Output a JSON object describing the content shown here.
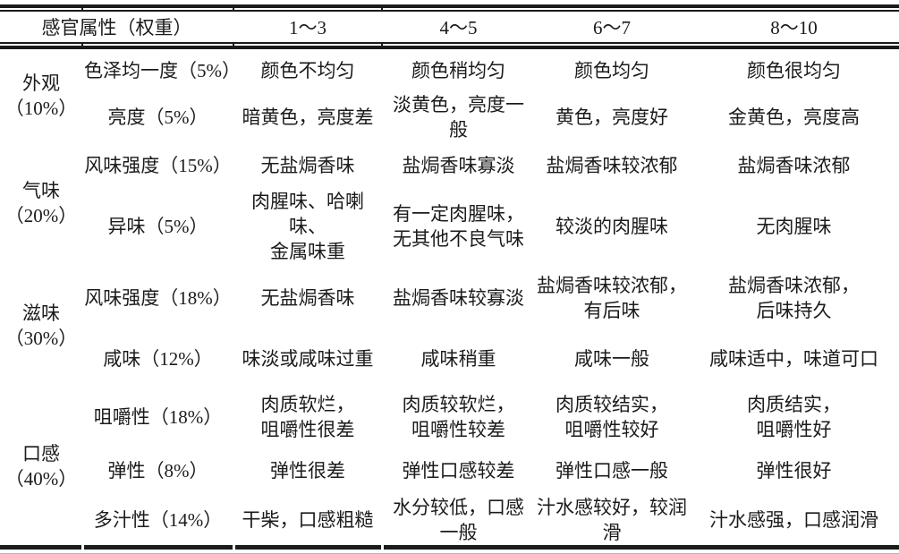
{
  "table": {
    "header": {
      "attribute_col": "感官属性（权重）",
      "score_cols": [
        "1～3",
        "4～5",
        "6～7",
        "8～10"
      ]
    },
    "groups": [
      {
        "name": "外观",
        "weight": "（10%）",
        "rows": [
          {
            "attribute": "色泽均一度（5%）",
            "scores": [
              [
                "颜色不均匀"
              ],
              [
                "颜色稍均匀"
              ],
              [
                "颜色均匀"
              ],
              [
                "颜色很均匀"
              ]
            ]
          },
          {
            "attribute": "亮度（5%）",
            "scores": [
              [
                "暗黄色，亮度差"
              ],
              [
                "淡黄色，亮度一般"
              ],
              [
                "黄色，亮度好"
              ],
              [
                "金黄色，亮度高"
              ]
            ]
          }
        ]
      },
      {
        "name": "气味",
        "weight": "（20%）",
        "rows": [
          {
            "attribute": "风味强度（15%）",
            "scores": [
              [
                "无盐焗香味"
              ],
              [
                "盐焗香味寡淡"
              ],
              [
                "盐焗香味较浓郁"
              ],
              [
                "盐焗香味浓郁"
              ]
            ]
          },
          {
            "attribute": "异味（5%）",
            "scores": [
              [
                "肉腥味、哈喇味、",
                "金属味重"
              ],
              [
                "有一定肉腥味，",
                "无其他不良气味"
              ],
              [
                "较淡的肉腥味"
              ],
              [
                "无肉腥味"
              ]
            ]
          }
        ]
      },
      {
        "name": "滋味",
        "weight": "（30%）",
        "rows": [
          {
            "attribute": "风味强度（18%）",
            "scores": [
              [
                "无盐焗香味"
              ],
              [
                "盐焗香味较寡淡"
              ],
              [
                "盐焗香味较浓郁，",
                "有后味"
              ],
              [
                "盐焗香味浓郁，",
                "后味持久"
              ]
            ]
          },
          {
            "attribute": "咸味（12%）",
            "scores": [
              [
                "味淡或咸味过重"
              ],
              [
                "咸味稍重"
              ],
              [
                "咸味一般"
              ],
              [
                "咸味适中，味道可口"
              ]
            ]
          }
        ]
      },
      {
        "name": "口感",
        "weight": "（40%）",
        "rows": [
          {
            "attribute": "咀嚼性（18%）",
            "scores": [
              [
                "肉质软烂，",
                "咀嚼性很差"
              ],
              [
                "肉质较软烂，",
                "咀嚼性较差"
              ],
              [
                "肉质较结实，",
                "咀嚼性较好"
              ],
              [
                "肉质结实，",
                "咀嚼性好"
              ]
            ]
          },
          {
            "attribute": "弹性（8%）",
            "scores": [
              [
                "弹性很差"
              ],
              [
                "弹性口感较差"
              ],
              [
                "弹性口感一般"
              ],
              [
                "弹性很好"
              ]
            ]
          },
          {
            "attribute": "多汁性（14%）",
            "scores": [
              [
                "干柴，口感粗糙"
              ],
              [
                "水分较低，口感一般"
              ],
              [
                "汁水感较好，较润滑"
              ],
              [
                "汁水感强，口感润滑"
              ]
            ]
          }
        ]
      }
    ]
  }
}
